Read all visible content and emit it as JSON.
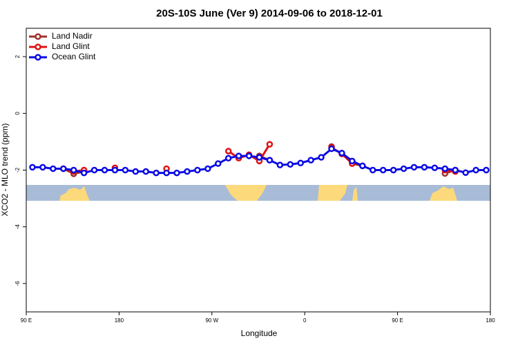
{
  "chart_data": {
    "type": "line",
    "title": "20S-10S June (Ver 9)   2014-09-06 to 2018-12-01",
    "xlabel": "Longitude",
    "ylabel": "XCO2 - MLO trend (ppm)",
    "x": [
      96,
      106,
      116,
      126,
      136,
      146,
      156,
      166,
      176,
      186,
      196,
      206,
      216,
      226,
      236,
      246,
      256,
      266,
      276,
      286,
      296,
      306,
      316,
      326,
      336,
      346,
      356,
      366,
      376,
      386,
      396,
      406,
      416,
      426,
      436,
      446,
      456,
      466,
      476,
      486,
      496,
      506,
      516,
      526,
      536
    ],
    "series": [
      {
        "name": "Land Nadir",
        "color": "#a0302a",
        "values": [
          null,
          null,
          null,
          -1.95,
          -2.13,
          -2.05,
          null,
          null,
          null,
          null,
          null,
          null,
          null,
          null,
          null,
          null,
          null,
          null,
          null,
          null,
          null,
          null,
          -1.5,
          -1.65,
          null,
          null,
          null,
          null,
          null,
          -1.17,
          null,
          -1.77,
          -1.85,
          null,
          null,
          null,
          null,
          null,
          null,
          null,
          -2.12,
          -2.0,
          null,
          null,
          null
        ]
      },
      {
        "name": "Land Glint",
        "color": "#e01010",
        "values": [
          null,
          null,
          null,
          -1.95,
          -2.05,
          -2.0,
          null,
          null,
          -1.92,
          null,
          null,
          null,
          null,
          -1.95,
          null,
          null,
          null,
          null,
          null,
          -1.33,
          -1.58,
          -1.46,
          -1.68,
          -1.09,
          null,
          null,
          null,
          null,
          null,
          -1.2,
          -1.43,
          -1.77,
          null,
          null,
          null,
          null,
          null,
          null,
          null,
          null,
          -2.0,
          -2.05,
          null,
          null,
          null
        ]
      },
      {
        "name": "Ocean Glint",
        "color": "#0a0ae6",
        "values": [
          -1.9,
          -1.9,
          -1.95,
          -1.95,
          -2.0,
          -2.1,
          -2.0,
          -2.0,
          -2.0,
          -2.0,
          -2.05,
          -2.05,
          -2.1,
          -2.1,
          -2.1,
          -2.05,
          -2.0,
          -1.95,
          -1.77,
          -1.58,
          -1.5,
          -1.5,
          -1.55,
          -1.65,
          -1.82,
          -1.8,
          -1.75,
          -1.65,
          -1.55,
          -1.25,
          -1.4,
          -1.68,
          -1.85,
          -2.0,
          -2.0,
          -2.0,
          -1.95,
          -1.9,
          -1.9,
          -1.92,
          -1.95,
          -2.0,
          -2.09,
          -2.0,
          -2.0
        ]
      }
    ],
    "xlim": [
      90,
      540
    ],
    "xticks": [
      {
        "value": 90,
        "label": "90 E"
      },
      180,
      {
        "value": 270,
        "label": "90 W"
      },
      {
        "value": 360,
        "label": "0"
      },
      {
        "value": 450,
        "label": "90 E"
      },
      180
    ],
    "ylim": [
      -7,
      3
    ],
    "yticks": [
      2,
      0,
      -2,
      -4,
      -6
    ],
    "legend": "top-left"
  }
}
